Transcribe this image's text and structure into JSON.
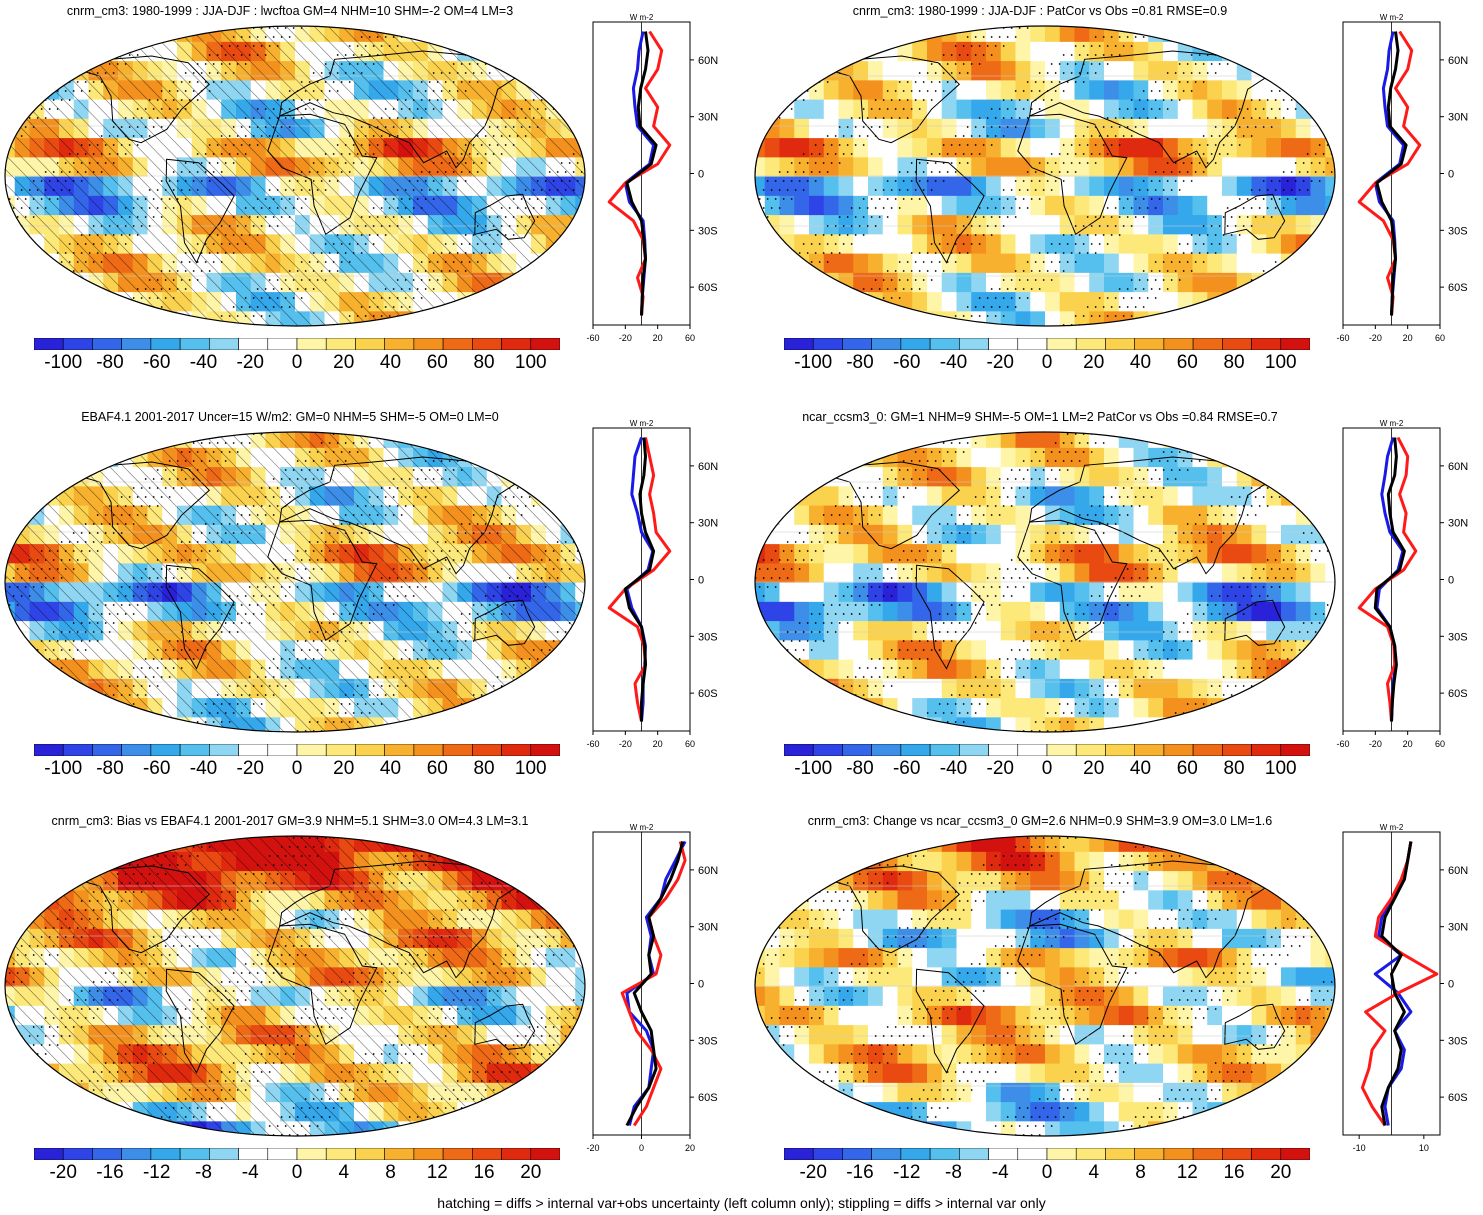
{
  "footer": "hatching = diffs > internal var+obs uncertainty (left column only); stippling = diffs > internal var only",
  "colors": {
    "neg": [
      "#2a22d8",
      "#2f44e6",
      "#3366e8",
      "#3d8ee8",
      "#35a8ec",
      "#55c0ee",
      "#8ed6f2"
    ],
    "pos": [
      "#fff5a8",
      "#fde87a",
      "#fbd24e",
      "#f7b12e",
      "#f3901e",
      "#ee6a16",
      "#e84a12",
      "#e02a10",
      "#d31210"
    ],
    "mid": "#ffffff",
    "model_line": "#1a1ae6",
    "obs_line": "#ff1a1a",
    "new_line": "#000000"
  },
  "chart_data": [
    {
      "type": "heatmap",
      "title": "cnrm_cm3: 1980-1999 : JJA-DJF : lwcftoa GM=4 NHM=10 SHM=-2 OM=4 LM=3",
      "colorbar_ticks": [
        "-100",
        "-80",
        "-60",
        "-40",
        "-20",
        "0",
        "20",
        "40",
        "60",
        "80",
        "100"
      ],
      "colorbar_range": [
        -110,
        110
      ],
      "overlay": "hatching+stippling",
      "zonal": {
        "units": "W m-2",
        "xlim": [
          -60,
          60
        ],
        "xticks": [
          "-60",
          "-20",
          "20",
          "60"
        ],
        "ylim": [
          -80,
          80
        ],
        "yticks": [
          "60N",
          "30N",
          "0",
          "30S",
          "60S"
        ],
        "lat": [
          -75,
          -65,
          -55,
          -45,
          -35,
          -25,
          -15,
          -5,
          5,
          15,
          25,
          35,
          45,
          55,
          65,
          75
        ],
        "series": [
          {
            "name": "model",
            "values": [
              0,
              1,
              3,
              5,
              4,
              2,
              -15,
              -20,
              10,
              15,
              -5,
              -8,
              -10,
              -5,
              -3,
              2
            ]
          },
          {
            "name": "obs",
            "values": [
              0,
              2,
              -5,
              5,
              2,
              -10,
              -40,
              -20,
              20,
              35,
              15,
              20,
              5,
              20,
              25,
              10
            ]
          },
          {
            "name": "new",
            "values": [
              0,
              1,
              2,
              5,
              3,
              0,
              -12,
              -18,
              12,
              18,
              -2,
              -4,
              -1,
              5,
              8,
              5
            ]
          }
        ]
      }
    },
    {
      "type": "heatmap",
      "title": "cnrm_cm3: 1980-1999 : JJA-DJF : PatCor vs Obs =0.81 RMSE=0.9",
      "colorbar_ticks": [
        "-100",
        "-80",
        "-60",
        "-40",
        "-20",
        "0",
        "20",
        "40",
        "60",
        "80",
        "100"
      ],
      "colorbar_range": [
        -110,
        110
      ],
      "overlay": "stippling",
      "zonal": {
        "units": "W m-2",
        "xlim": [
          -60,
          60
        ],
        "xticks": [
          "-60",
          "-20",
          "20",
          "60"
        ],
        "ylim": [
          -80,
          80
        ],
        "yticks": [
          "60N",
          "30N",
          "0",
          "30S",
          "60S"
        ],
        "lat": [
          -75,
          -65,
          -55,
          -45,
          -35,
          -25,
          -15,
          -5,
          5,
          15,
          25,
          35,
          45,
          55,
          65,
          75
        ],
        "series": [
          {
            "name": "model",
            "values": [
              0,
              1,
              3,
              5,
              4,
              2,
              -15,
              -20,
              10,
              15,
              -5,
              -8,
              -10,
              -5,
              -3,
              2
            ]
          },
          {
            "name": "obs",
            "values": [
              0,
              2,
              -5,
              5,
              2,
              -10,
              -40,
              -20,
              20,
              35,
              15,
              20,
              5,
              20,
              25,
              10
            ]
          },
          {
            "name": "new",
            "values": [
              0,
              1,
              2,
              5,
              3,
              0,
              -12,
              -18,
              12,
              18,
              -2,
              -4,
              -1,
              5,
              8,
              5
            ]
          }
        ]
      }
    },
    {
      "type": "heatmap",
      "title": "EBAF4.1 2001-2017 Uncer=15 W/m2: GM=0 NHM=5 SHM=-5 OM=0 LM=0",
      "colorbar_ticks": [
        "-100",
        "-80",
        "-60",
        "-40",
        "-20",
        "0",
        "20",
        "40",
        "60",
        "80",
        "100"
      ],
      "colorbar_range": [
        -110,
        110
      ],
      "overlay": "hatching+stippling",
      "zonal": {
        "units": "W m-2",
        "xlim": [
          -60,
          60
        ],
        "xticks": [
          "-60",
          "-20",
          "20",
          "60"
        ],
        "ylim": [
          -80,
          80
        ],
        "yticks": [
          "60N",
          "30N",
          "0",
          "30S",
          "60S"
        ],
        "lat": [
          -75,
          -65,
          -55,
          -45,
          -35,
          -25,
          -15,
          -5,
          5,
          15,
          25,
          35,
          45,
          55,
          65,
          75
        ],
        "series": [
          {
            "name": "model",
            "values": [
              0,
              2,
              2,
              4,
              5,
              0,
              -12,
              -18,
              8,
              14,
              0,
              -5,
              -12,
              -10,
              -8,
              0
            ]
          },
          {
            "name": "obs",
            "values": [
              0,
              -5,
              -8,
              5,
              3,
              -5,
              -40,
              -20,
              15,
              35,
              18,
              15,
              10,
              15,
              10,
              5
            ]
          },
          {
            "name": "new",
            "values": [
              0,
              0,
              2,
              5,
              4,
              0,
              -15,
              -20,
              10,
              15,
              5,
              0,
              -2,
              3,
              5,
              3
            ]
          }
        ]
      }
    },
    {
      "type": "heatmap",
      "title": "ncar_ccsm3_0: GM=1 NHM=9 SHM=-5 OM=1 LM=2 PatCor vs Obs =0.84 RMSE=0.7",
      "colorbar_ticks": [
        "-100",
        "-80",
        "-60",
        "-40",
        "-20",
        "0",
        "20",
        "40",
        "60",
        "80",
        "100"
      ],
      "colorbar_range": [
        -110,
        110
      ],
      "overlay": "stippling",
      "zonal": {
        "units": "W m-2",
        "xlim": [
          -60,
          60
        ],
        "xticks": [
          "-60",
          "-20",
          "20",
          "60"
        ],
        "ylim": [
          -80,
          80
        ],
        "yticks": [
          "60N",
          "30N",
          "0",
          "30S",
          "60S"
        ],
        "lat": [
          -75,
          -65,
          -55,
          -45,
          -35,
          -25,
          -15,
          -5,
          5,
          15,
          25,
          35,
          45,
          55,
          65,
          75
        ],
        "series": [
          {
            "name": "model",
            "values": [
              0,
              1,
              2,
              5,
              4,
              -2,
              -18,
              -15,
              8,
              14,
              -2,
              -8,
              -12,
              -8,
              -5,
              2
            ]
          },
          {
            "name": "obs",
            "values": [
              0,
              -2,
              -5,
              4,
              3,
              -5,
              -40,
              -20,
              15,
              30,
              15,
              18,
              10,
              18,
              20,
              8
            ]
          },
          {
            "name": "new",
            "values": [
              0,
              1,
              3,
              6,
              4,
              -2,
              -20,
              -18,
              10,
              16,
              2,
              -2,
              -4,
              4,
              6,
              4
            ]
          }
        ]
      }
    },
    {
      "type": "heatmap",
      "title": "cnrm_cm3: Bias vs EBAF4.1 2001-2017 GM=3.9 NHM=5.1 SHM=3.0 OM=4.3 LM=3.1",
      "colorbar_ticks": [
        "-20",
        "-16",
        "-12",
        "-8",
        "-4",
        "0",
        "4",
        "8",
        "12",
        "16",
        "20"
      ],
      "colorbar_range": [
        -22,
        22
      ],
      "overlay": "hatching+stippling",
      "zonal": {
        "units": "W m-2",
        "xlim": [
          -20,
          20
        ],
        "xticks": [
          "-20",
          "0",
          "20"
        ],
        "ylim": [
          -80,
          80
        ],
        "yticks": [
          "60N",
          "30N",
          "0",
          "30S",
          "60S"
        ],
        "lat": [
          -75,
          -65,
          -55,
          -45,
          -35,
          -25,
          -15,
          -5,
          5,
          15,
          25,
          35,
          45,
          55,
          65,
          75
        ],
        "series": [
          {
            "name": "model",
            "values": [
              -5,
              -3,
              3,
              4,
              5,
              2,
              -5,
              -6,
              5,
              3,
              4,
              2,
              8,
              10,
              14,
              18
            ]
          },
          {
            "name": "obs",
            "values": [
              -3,
              2,
              5,
              8,
              4,
              -2,
              -5,
              -8,
              6,
              8,
              5,
              3,
              10,
              15,
              18,
              16
            ]
          },
          {
            "name": "new",
            "values": [
              -6,
              -2,
              3,
              6,
              5,
              4,
              0,
              -3,
              4,
              3,
              5,
              3,
              8,
              12,
              15,
              17
            ]
          }
        ]
      }
    },
    {
      "type": "heatmap",
      "title": "cnrm_cm3: Change vs ncar_ccsm3_0 GM=2.6 NHM=0.9 SHM=3.9 OM=3.0 LM=1.6",
      "colorbar_ticks": [
        "-20",
        "-16",
        "-12",
        "-8",
        "-4",
        "0",
        "4",
        "8",
        "12",
        "16",
        "20"
      ],
      "colorbar_range": [
        -22,
        22
      ],
      "overlay": "stippling",
      "zonal": {
        "units": "W m-2",
        "xlim": [
          -15,
          15
        ],
        "xticks": [
          "-10",
          "10"
        ],
        "ylim": [
          -80,
          80
        ],
        "yticks": [
          "60N",
          "30N",
          "0",
          "30S",
          "60S"
        ],
        "lat": [
          -75,
          -65,
          -55,
          -45,
          -35,
          -25,
          -15,
          -5,
          5,
          15,
          25,
          35,
          45,
          55,
          65,
          75
        ],
        "series": [
          {
            "name": "model",
            "values": [
              -1,
              -2,
              -1,
              3,
              4,
              1,
              6,
              2,
              -5,
              3,
              -4,
              -3,
              0,
              4,
              5,
              6
            ]
          },
          {
            "name": "obs",
            "values": [
              -2,
              -6,
              -9,
              -7,
              -6,
              -2,
              -8,
              2,
              14,
              4,
              -5,
              -4,
              0,
              3,
              5,
              6
            ]
          },
          {
            "name": "new",
            "values": [
              -2,
              -3,
              -1,
              2,
              3,
              1,
              4,
              1,
              0,
              3,
              -3,
              -2,
              1,
              4,
              5,
              6
            ]
          }
        ]
      }
    }
  ]
}
